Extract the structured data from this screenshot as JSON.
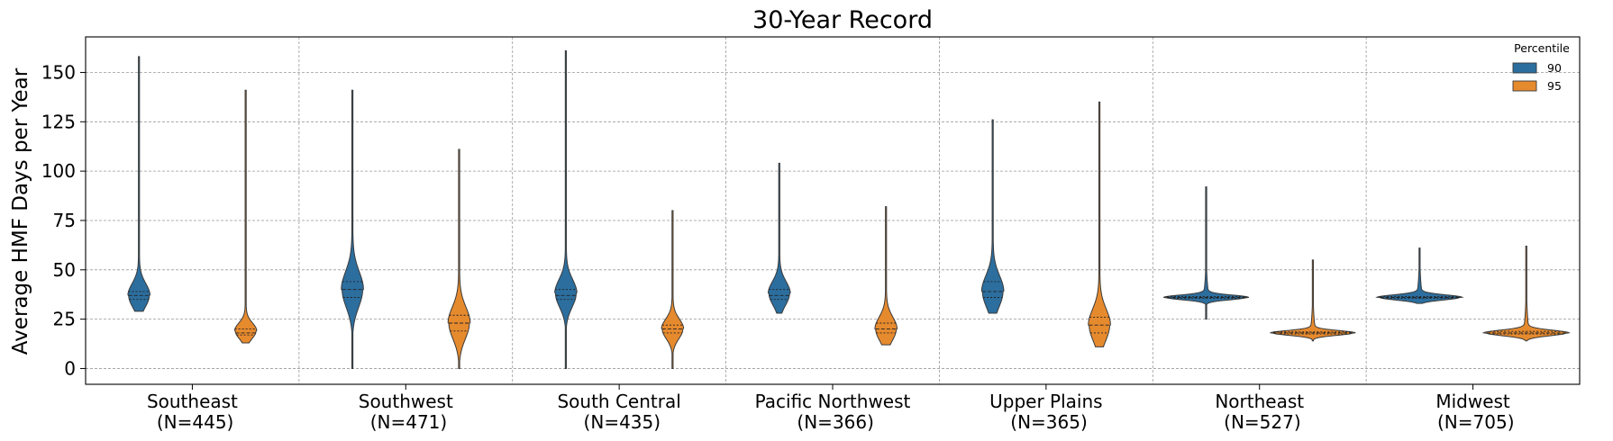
{
  "chart_data": {
    "type": "violin",
    "title": "30-Year Record",
    "xlabel": "",
    "ylabel": "Average HMF Days per Year",
    "ylim": [
      -8,
      168
    ],
    "yticks": [
      0,
      25,
      50,
      75,
      100,
      125,
      150
    ],
    "grid": true,
    "legend": {
      "title": "Percentile",
      "placement": "top-right"
    },
    "categories": [
      "Southeast\n(N=445)",
      "Southwest\n(N=471)",
      "South Central\n(N=435)",
      "Pacific Northwest\n(N=366)",
      "Upper Plains\n(N=365)",
      "Northeast\n(N=527)",
      "Midwest\n(N=705)"
    ],
    "series": [
      {
        "name": "90",
        "color": "#2c6e9e",
        "violins": [
          {
            "min": 29,
            "max": 158,
            "q1": 35,
            "median": 37,
            "q3": 39,
            "mode": 37,
            "spread": 6
          },
          {
            "min": 0,
            "max": 141,
            "q1": 36,
            "median": 40,
            "q3": 44,
            "mode": 40,
            "spread": 9
          },
          {
            "min": 0,
            "max": 161,
            "q1": 35,
            "median": 37,
            "q3": 40,
            "mode": 38,
            "spread": 7
          },
          {
            "min": 28,
            "max": 104,
            "q1": 35,
            "median": 37,
            "q3": 40,
            "mode": 38,
            "spread": 6
          },
          {
            "min": 28,
            "max": 126,
            "q1": 36,
            "median": 39,
            "q3": 44,
            "mode": 39,
            "spread": 8
          },
          {
            "min": 25,
            "max": 92,
            "q1": 35.5,
            "median": 36,
            "q3": 36.5,
            "mode": 36,
            "spread": 1.2
          },
          {
            "min": 33,
            "max": 61,
            "q1": 35.5,
            "median": 36,
            "q3": 36.5,
            "mode": 36,
            "spread": 1.3
          }
        ]
      },
      {
        "name": "95",
        "color": "#e68a2e",
        "violins": [
          {
            "min": 13,
            "max": 141,
            "q1": 17,
            "median": 18,
            "q3": 20,
            "mode": 19,
            "spread": 4
          },
          {
            "min": 0,
            "max": 111,
            "q1": 19,
            "median": 23,
            "q3": 27,
            "mode": 23,
            "spread": 8
          },
          {
            "min": 0,
            "max": 80,
            "q1": 18,
            "median": 20,
            "q3": 22,
            "mode": 20,
            "spread": 5
          },
          {
            "min": 12,
            "max": 82,
            "q1": 18,
            "median": 20,
            "q3": 23,
            "mode": 20,
            "spread": 6
          },
          {
            "min": 11,
            "max": 135,
            "q1": 18,
            "median": 22,
            "q3": 26,
            "mode": 22,
            "spread": 8
          },
          {
            "min": 14,
            "max": 55,
            "q1": 17.5,
            "median": 18,
            "q3": 18.5,
            "mode": 18,
            "spread": 1.2
          },
          {
            "min": 14,
            "max": 62,
            "q1": 17.5,
            "median": 18,
            "q3": 18.8,
            "mode": 18,
            "spread": 1.4
          }
        ]
      }
    ]
  }
}
